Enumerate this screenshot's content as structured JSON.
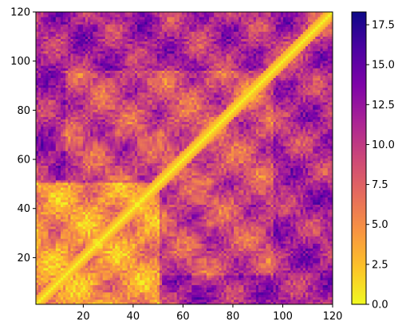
{
  "chart_data": {
    "type": "heatmap",
    "title": "",
    "xlabel": "",
    "ylabel": "",
    "xlim": [
      1,
      120
    ],
    "ylim": [
      1,
      120
    ],
    "x_ticks": [
      20,
      40,
      60,
      80,
      100,
      120
    ],
    "x_tick_labels": [
      "20",
      "40",
      "60",
      "80",
      "100",
      "120"
    ],
    "y_ticks": [
      20,
      40,
      60,
      80,
      100,
      120
    ],
    "y_tick_labels": [
      "20",
      "40",
      "60",
      "80",
      "100",
      "120"
    ],
    "grid": false,
    "colormap": "plasma_r",
    "colorbar": {
      "vmin": 0.0,
      "vmax": 18.3,
      "ticks": [
        0.0,
        2.5,
        5.0,
        7.5,
        10.0,
        12.5,
        15.0,
        17.5
      ],
      "tick_labels": [
        "0.0",
        "2.5",
        "5.0",
        "7.5",
        "10.0",
        "12.5",
        "15.0",
        "17.5"
      ],
      "position": "right"
    },
    "matrix_size": 120,
    "diagonal_value": 0.0,
    "description_of_values": "pairwise distance-like matrix, zero on diagonal; lower-left block (indices ~1-50) mostly 2-6, other regions 5-16"
  }
}
